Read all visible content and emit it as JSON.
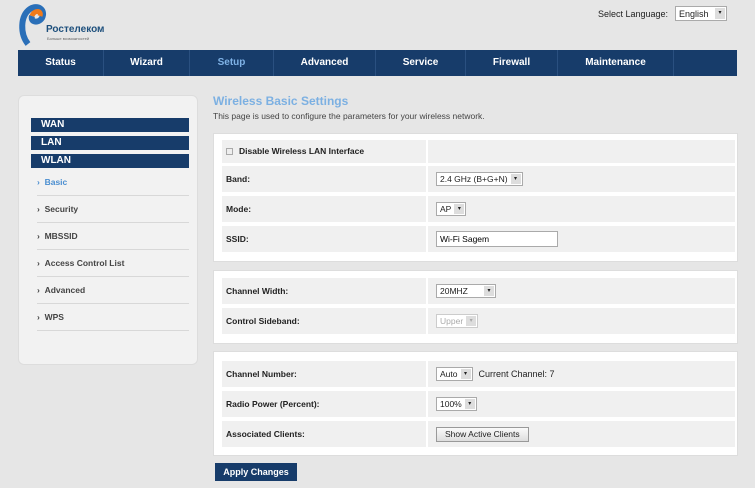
{
  "brand": {
    "name": "Ростелеком",
    "tagline": "Больше возможностей",
    "colors": {
      "primary": "#173c6a",
      "accent": "#7cb0e2",
      "logo_orange": "#f07a1a"
    }
  },
  "language": {
    "label": "Select Language:",
    "value": "English"
  },
  "nav": [
    {
      "label": "Status"
    },
    {
      "label": "Wizard"
    },
    {
      "label": "Setup",
      "active": true
    },
    {
      "label": "Advanced"
    },
    {
      "label": "Service"
    },
    {
      "label": "Firewall"
    },
    {
      "label": "Maintenance"
    }
  ],
  "sidebar": {
    "headers": [
      "WAN",
      "LAN",
      "WLAN"
    ],
    "items": [
      {
        "label": "Basic",
        "active": true
      },
      {
        "label": "Security"
      },
      {
        "label": "MBSSID"
      },
      {
        "label": "Access Control List"
      },
      {
        "label": "Advanced"
      },
      {
        "label": "WPS"
      }
    ],
    "bullet": "›"
  },
  "page": {
    "title": "Wireless Basic Settings",
    "description": "This page is used to configure the parameters for your wireless network."
  },
  "form": {
    "disable_label": "Disable Wireless LAN Interface",
    "disable_checked": false,
    "band": {
      "label": "Band:",
      "value": "2.4 GHz (B+G+N)"
    },
    "mode": {
      "label": "Mode:",
      "value": "AP"
    },
    "ssid": {
      "label": "SSID:",
      "value": "Wi-Fi Sagem"
    },
    "channel_width": {
      "label": "Channel Width:",
      "value": "20MHZ"
    },
    "sideband": {
      "label": "Control Sideband:",
      "value": "Upper",
      "disabled": true
    },
    "channel_number": {
      "label": "Channel Number:",
      "value": "Auto",
      "current": "Current Channel: 7"
    },
    "radio_power": {
      "label": "Radio Power (Percent):",
      "value": "100%"
    },
    "clients": {
      "label": "Associated Clients:",
      "button": "Show Active Clients"
    }
  },
  "apply_label": "Apply Changes",
  "arrow": "▾"
}
